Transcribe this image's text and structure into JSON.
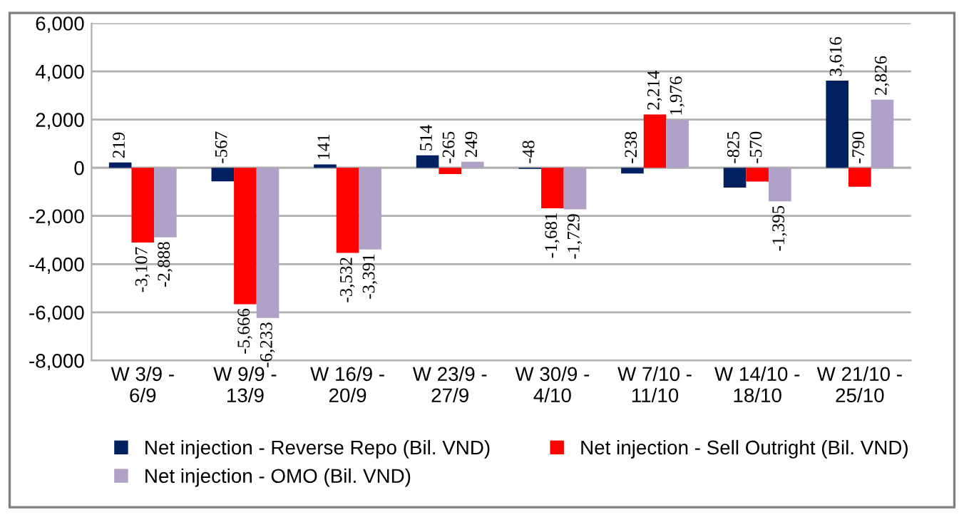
{
  "chart_data": {
    "type": "bar",
    "categories": [
      "W 3/9 - 6/9",
      "W 9/9 - 13/9",
      "W 16/9 - 20/9",
      "W 23/9 - 27/9",
      "W 30/9 - 4/10",
      "W 7/10 - 11/10",
      "W 14/10 - 18/10",
      "W 21/10 - 25/10"
    ],
    "series": [
      {
        "name": "Net injection - Reverse Repo (Bil. VND)",
        "color": "#002060",
        "values": [
          219,
          -567,
          141,
          514,
          -48,
          -238,
          -825,
          3616
        ],
        "value_labels": [
          "219",
          "-567",
          "141",
          "514",
          "-48",
          "-238",
          "-825",
          "3,616"
        ]
      },
      {
        "name": "Net injection - Sell Outright (Bil. VND)",
        "color": "#ff0000",
        "values": [
          -3107,
          -5666,
          -3532,
          -265,
          -1681,
          2214,
          -570,
          -790
        ],
        "value_labels": [
          "-3,107",
          "-5,666",
          "-3,532",
          "-265",
          "-1,681",
          "2,214",
          "-570",
          "-790"
        ]
      },
      {
        "name": "Net injection - OMO (Bil. VND)",
        "color": "#b1a0c7",
        "values": [
          -2888,
          -6233,
          -3391,
          249,
          -1729,
          1976,
          -1395,
          2826
        ],
        "value_labels": [
          "-2,888",
          "-6,233",
          "-3,391",
          "249",
          "-1,729",
          "1,976",
          "-1,395",
          "2,826"
        ]
      }
    ],
    "ylim": [
      -8000,
      6000
    ],
    "yticks": [
      {
        "value": -8000,
        "label": "-8,000"
      },
      {
        "value": -6000,
        "label": "-6,000"
      },
      {
        "value": -4000,
        "label": "-4,000"
      },
      {
        "value": -2000,
        "label": "-2,000"
      },
      0,
      {
        "value": 2000,
        "label": "2,000"
      },
      {
        "value": 4000,
        "label": "4,000"
      },
      {
        "value": 6000,
        "label": "6,000"
      }
    ],
    "grid": "y",
    "legend": "bottom"
  }
}
